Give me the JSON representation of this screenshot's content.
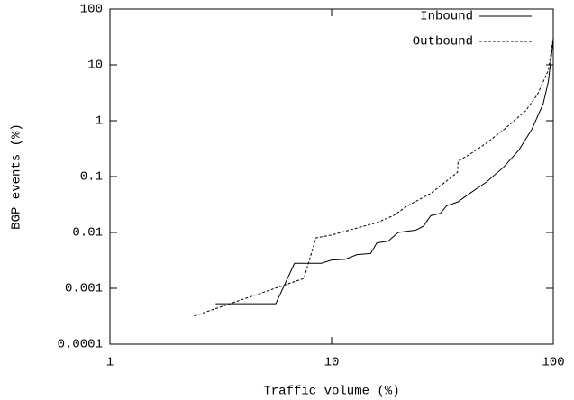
{
  "chart_data": {
    "type": "line",
    "xlabel": "Traffic volume (%)",
    "ylabel": "BGP events (%)",
    "xscale": "log",
    "yscale": "log",
    "xlim": [
      1,
      100
    ],
    "ylim": [
      0.0001,
      100
    ],
    "xticks": [
      1,
      10,
      100
    ],
    "yticks": [
      0.0001,
      0.001,
      0.01,
      0.1,
      1,
      10,
      100
    ],
    "legend": "upper right",
    "series": [
      {
        "name": "Inbound",
        "color": "#000000",
        "line_style": "solid",
        "x": [
          3,
          5.6,
          6.8,
          9,
          10,
          11.5,
          13,
          15,
          16,
          18,
          20,
          24,
          26,
          28,
          31,
          33,
          37,
          42,
          50,
          60,
          70,
          80,
          90,
          95,
          99,
          100
        ],
        "values": [
          0.00053,
          0.00053,
          0.0028,
          0.0028,
          0.0032,
          0.0033,
          0.004,
          0.0042,
          0.0065,
          0.007,
          0.01,
          0.011,
          0.013,
          0.02,
          0.022,
          0.03,
          0.035,
          0.05,
          0.08,
          0.15,
          0.3,
          0.7,
          2,
          5,
          20,
          30
        ]
      },
      {
        "name": "Outbound",
        "color": "#000000",
        "line_style": "dashed",
        "x": [
          2.4,
          7.5,
          8.5,
          10,
          13,
          16,
          19,
          22,
          28,
          35,
          37,
          37.2,
          42,
          50,
          60,
          75,
          85,
          95,
          100
        ],
        "values": [
          0.00032,
          0.0015,
          0.008,
          0.009,
          0.012,
          0.015,
          0.02,
          0.03,
          0.05,
          0.1,
          0.12,
          0.19,
          0.25,
          0.4,
          0.7,
          1.5,
          3,
          8,
          30
        ]
      }
    ]
  }
}
